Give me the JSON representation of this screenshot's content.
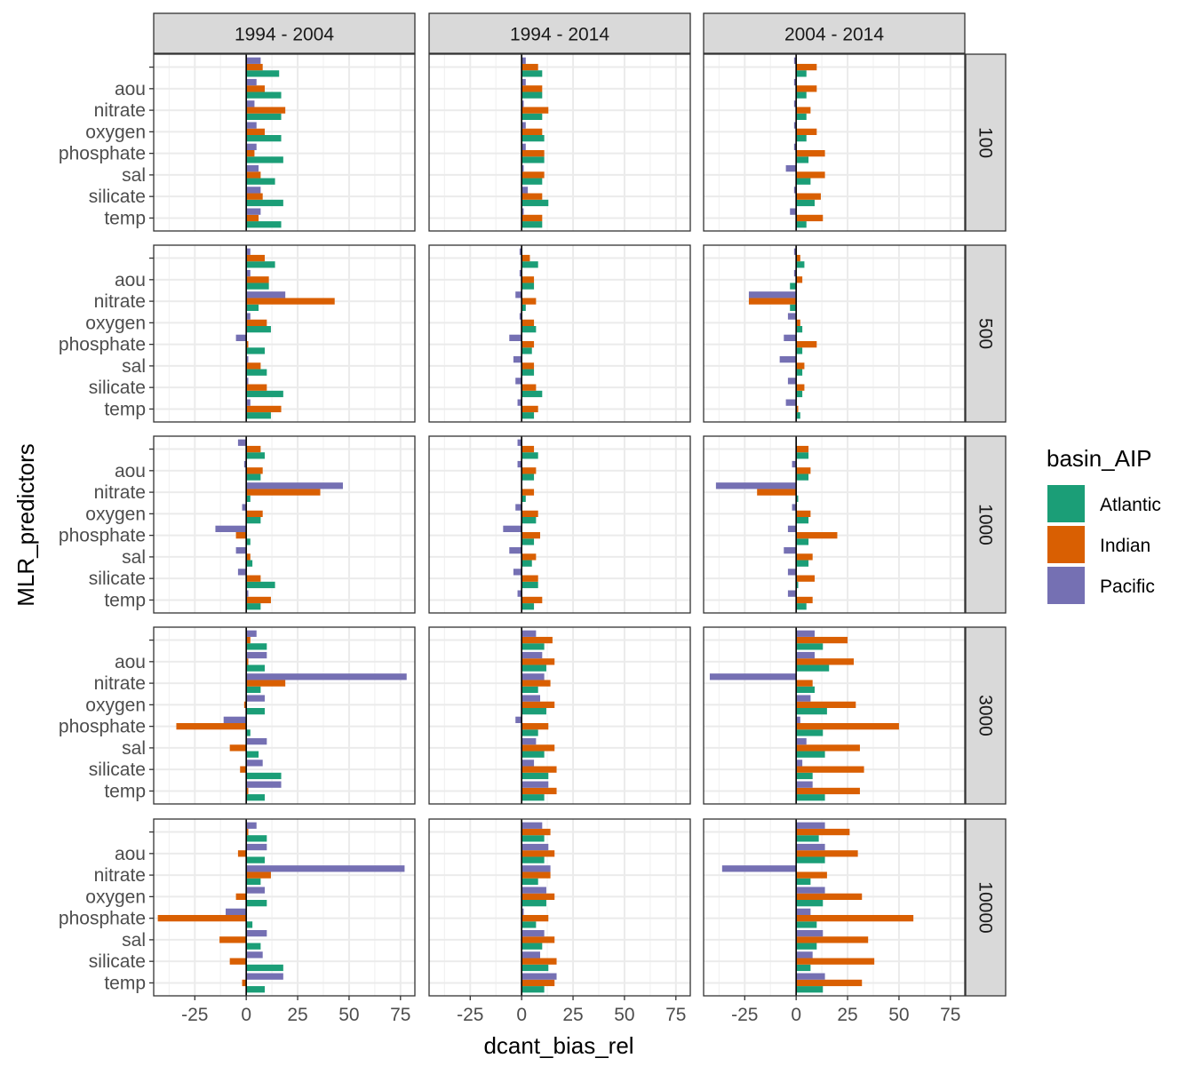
{
  "chart_data": {
    "type": "bar",
    "orientation": "horizontal",
    "xlabel": "dcant_bias_rel",
    "ylabel": "MLR_predictors",
    "xlim": [
      -45,
      82
    ],
    "x_ticks": [
      -25,
      0,
      25,
      50,
      75
    ],
    "grid": true,
    "legend": {
      "title": "basin_AIP",
      "position": "right",
      "entries": [
        {
          "name": "Atlantic",
          "color": "#1B9E77"
        },
        {
          "name": "Indian",
          "color": "#D95F02"
        },
        {
          "name": "Pacific",
          "color": "#7570B3"
        }
      ]
    },
    "categories": [
      "temp",
      "silicate",
      "sal",
      "phosphate",
      "oxygen",
      "nitrate",
      "aou",
      ""
    ],
    "col_facets": [
      "1994 - 2004",
      "1994 - 2014",
      "2004 - 2014"
    ],
    "row_facets": [
      "100",
      "500",
      "1000",
      "3000",
      "10000"
    ],
    "panels": [
      [
        {
          "Atlantic": [
            17,
            18,
            14,
            18,
            17,
            17,
            17,
            16
          ],
          "Indian": [
            6,
            8,
            7,
            4,
            9,
            19,
            9,
            8
          ],
          "Pacific": [
            7,
            7,
            6,
            5,
            5,
            4,
            5,
            7
          ]
        },
        {
          "Atlantic": [
            10,
            13,
            10,
            11,
            11,
            10,
            10,
            10
          ],
          "Indian": [
            10,
            10,
            11,
            11,
            10,
            13,
            10,
            8
          ],
          "Pacific": [
            1,
            3,
            1,
            2,
            2,
            1,
            2,
            2
          ]
        },
        {
          "Atlantic": [
            5,
            9,
            7,
            6,
            5,
            5,
            5,
            5
          ],
          "Indian": [
            13,
            12,
            14,
            14,
            10,
            7,
            10,
            10
          ],
          "Pacific": [
            -3,
            -1,
            -5,
            -1,
            -1,
            -1,
            -1,
            -1
          ]
        }
      ],
      [
        {
          "Atlantic": [
            12,
            18,
            10,
            9,
            12,
            6,
            11,
            14
          ],
          "Indian": [
            17,
            10,
            7,
            1,
            10,
            43,
            11,
            9
          ],
          "Pacific": [
            2,
            1,
            1,
            -5,
            2,
            19,
            2,
            2
          ]
        },
        {
          "Atlantic": [
            6,
            10,
            6,
            5,
            7,
            2,
            6,
            8
          ],
          "Indian": [
            8,
            7,
            6,
            6,
            6,
            7,
            6,
            4
          ],
          "Pacific": [
            -2,
            -3,
            -4,
            -6,
            -1,
            -3,
            -1,
            -1
          ]
        },
        {
          "Atlantic": [
            2,
            3,
            3,
            3,
            3,
            -3,
            -3,
            4
          ],
          "Indian": [
            1,
            4,
            4,
            10,
            2,
            -23,
            3,
            2
          ],
          "Pacific": [
            -5,
            -4,
            -8,
            -6,
            -4,
            -23,
            -1,
            -1
          ]
        }
      ],
      [
        {
          "Atlantic": [
            7,
            14,
            3,
            2,
            7,
            2,
            7,
            9
          ],
          "Indian": [
            12,
            7,
            2,
            -5,
            8,
            36,
            8,
            7
          ],
          "Pacific": [
            1,
            -4,
            -5,
            -15,
            -2,
            47,
            -1,
            -4
          ]
        },
        {
          "Atlantic": [
            6,
            8,
            5,
            6,
            7,
            2,
            6,
            8
          ],
          "Indian": [
            10,
            8,
            7,
            9,
            8,
            6,
            7,
            6
          ],
          "Pacific": [
            -2,
            -4,
            -6,
            -9,
            -3,
            0,
            -2,
            -2
          ]
        },
        {
          "Atlantic": [
            5,
            1,
            6,
            6,
            6,
            1,
            6,
            6
          ],
          "Indian": [
            8,
            9,
            8,
            20,
            7,
            -19,
            7,
            6
          ],
          "Pacific": [
            -4,
            -4,
            -6,
            -4,
            -2,
            -39,
            -2,
            0
          ]
        }
      ],
      [
        {
          "Atlantic": [
            9,
            17,
            6,
            2,
            9,
            7,
            9,
            10
          ],
          "Indian": [
            1,
            -3,
            -8,
            -34,
            -1,
            19,
            1,
            2
          ],
          "Pacific": [
            17,
            8,
            10,
            -11,
            9,
            78,
            10,
            5
          ]
        },
        {
          "Atlantic": [
            11,
            13,
            11,
            8,
            12,
            8,
            12,
            11
          ],
          "Indian": [
            17,
            17,
            16,
            13,
            16,
            14,
            16,
            15
          ],
          "Pacific": [
            13,
            6,
            7,
            -3,
            9,
            11,
            10,
            7
          ]
        },
        {
          "Atlantic": [
            14,
            8,
            14,
            13,
            15,
            9,
            16,
            13
          ],
          "Indian": [
            31,
            33,
            31,
            50,
            29,
            8,
            28,
            25
          ],
          "Pacific": [
            8,
            3,
            5,
            2,
            7,
            -42,
            9,
            9
          ]
        }
      ],
      [
        {
          "Atlantic": [
            9,
            18,
            7,
            3,
            10,
            7,
            9,
            10
          ],
          "Indian": [
            -2,
            -8,
            -13,
            -43,
            -5,
            12,
            -4,
            1
          ],
          "Pacific": [
            18,
            8,
            10,
            -10,
            9,
            77,
            10,
            5
          ]
        },
        {
          "Atlantic": [
            11,
            13,
            10,
            7,
            12,
            8,
            11,
            11
          ],
          "Indian": [
            16,
            17,
            16,
            13,
            16,
            14,
            16,
            14
          ],
          "Pacific": [
            17,
            9,
            11,
            1,
            12,
            14,
            13,
            10
          ]
        },
        {
          "Atlantic": [
            13,
            7,
            10,
            10,
            13,
            7,
            14,
            11
          ],
          "Indian": [
            32,
            38,
            35,
            57,
            32,
            15,
            30,
            26
          ],
          "Pacific": [
            14,
            8,
            13,
            7,
            14,
            -36,
            14,
            14
          ]
        }
      ]
    ]
  }
}
